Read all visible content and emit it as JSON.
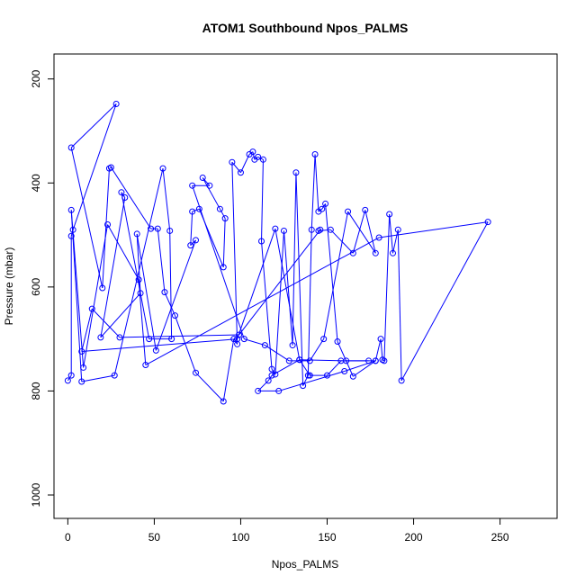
{
  "chart_data": {
    "type": "line",
    "title": "ATOM1 Southbound Npos_PALMS",
    "xlabel": "Npos_PALMS",
    "ylabel": "Pressure (mbar)",
    "xlim": [
      -8,
      283
    ],
    "ylim": [
      1045,
      152
    ],
    "y_reversed": true,
    "grid": false,
    "legend": "none",
    "color": "#0000ff",
    "xticks": [
      0,
      50,
      100,
      150,
      200,
      250
    ],
    "yticks": [
      200,
      400,
      600,
      800,
      1000
    ],
    "series": [
      {
        "points": [
          [
            0,
            780
          ],
          [
            2,
            770
          ],
          [
            2,
            502
          ],
          [
            3,
            490
          ],
          [
            28,
            248
          ],
          [
            2,
            332
          ],
          [
            20,
            602
          ],
          [
            24,
            372
          ],
          [
            25,
            370
          ],
          [
            48,
            488
          ],
          [
            52,
            488
          ],
          [
            56,
            610
          ],
          [
            62,
            655
          ],
          [
            74,
            765
          ],
          [
            90,
            820
          ],
          [
            96,
            700
          ],
          [
            98,
            710
          ],
          [
            95,
            360
          ],
          [
            100,
            380
          ],
          [
            105,
            345
          ],
          [
            107,
            340
          ],
          [
            108,
            355
          ],
          [
            110,
            350
          ],
          [
            113,
            355
          ],
          [
            112,
            512
          ],
          [
            118,
            758
          ],
          [
            120,
            768
          ],
          [
            125,
            492
          ],
          [
            130,
            712
          ],
          [
            132,
            380
          ],
          [
            136,
            790
          ],
          [
            139,
            770
          ],
          [
            141,
            490
          ],
          [
            143,
            345
          ],
          [
            145,
            455
          ],
          [
            147,
            450
          ],
          [
            149,
            440
          ],
          [
            156,
            705
          ],
          [
            165,
            772
          ],
          [
            178,
            742
          ],
          [
            181,
            700
          ],
          [
            182,
            740
          ],
          [
            183,
            742
          ],
          [
            186,
            460
          ],
          [
            188,
            535
          ],
          [
            191,
            490
          ],
          [
            193,
            780
          ],
          [
            243,
            475
          ],
          [
            180,
            505
          ],
          [
            45,
            750
          ],
          [
            41,
            586
          ],
          [
            23,
            480
          ],
          [
            9,
            755
          ],
          [
            2,
            452
          ],
          [
            8,
            782
          ],
          [
            27,
            770
          ],
          [
            55,
            372
          ],
          [
            59,
            492
          ],
          [
            60,
            700
          ],
          [
            47,
            700
          ],
          [
            31,
            418
          ],
          [
            33,
            428
          ],
          [
            19,
            697
          ],
          [
            42,
            612
          ],
          [
            40,
            498
          ],
          [
            51,
            722
          ],
          [
            74,
            510
          ],
          [
            71,
            520
          ],
          [
            72,
            455
          ],
          [
            76,
            450
          ],
          [
            90,
            562
          ],
          [
            91,
            468
          ],
          [
            88,
            450
          ],
          [
            78,
            390
          ],
          [
            82,
            405
          ],
          [
            72,
            405
          ],
          [
            102,
            700
          ],
          [
            114,
            712
          ],
          [
            128,
            742
          ],
          [
            140,
            742
          ],
          [
            148,
            700
          ],
          [
            162,
            455
          ],
          [
            178,
            535
          ],
          [
            172,
            452
          ],
          [
            165,
            535
          ],
          [
            152,
            490
          ],
          [
            145,
            492
          ],
          [
            146,
            490
          ],
          [
            99,
            692
          ],
          [
            30,
            697
          ],
          [
            14,
            642
          ],
          [
            8,
            724
          ],
          [
            98,
            700
          ],
          [
            120,
            488
          ],
          [
            134,
            740
          ],
          [
            161,
            742
          ],
          [
            178,
            742
          ],
          [
            160,
            762
          ],
          [
            122,
            800
          ],
          [
            110,
            800
          ],
          [
            116,
            780
          ],
          [
            118,
            770
          ],
          [
            134,
            740
          ],
          [
            140,
            770
          ],
          [
            150,
            770
          ],
          [
            158,
            742
          ],
          [
            174,
            742
          ]
        ]
      }
    ]
  }
}
